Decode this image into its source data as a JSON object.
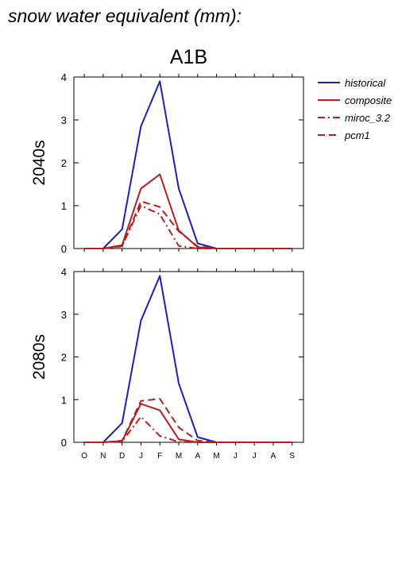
{
  "page_title": "snow water equivalent (mm):",
  "colors": {
    "historical": "#1f1fb4",
    "scenario": "#b41f1f"
  },
  "legend": [
    {
      "name": "historical",
      "color": "#1f1fb4",
      "dash": "solid"
    },
    {
      "name": "composite",
      "color": "#b41f1f",
      "dash": "solid"
    },
    {
      "name": "miroc_3.2",
      "color": "#b41f1f",
      "dash": "dashdot"
    },
    {
      "name": "pcm1",
      "color": "#b41f1f",
      "dash": "dash"
    }
  ],
  "chart_data": [
    {
      "type": "line",
      "title": "A1B",
      "ylabel": "2040s",
      "categories": [
        "O",
        "N",
        "D",
        "J",
        "F",
        "M",
        "A",
        "M",
        "J",
        "J",
        "A",
        "S"
      ],
      "ylim": [
        0,
        4
      ],
      "yticks": [
        0,
        1,
        2,
        3,
        4
      ],
      "series": [
        {
          "name": "historical",
          "values": [
            0,
            0,
            0.45,
            2.85,
            3.9,
            1.4,
            0.12,
            0,
            0,
            0,
            0,
            0
          ]
        },
        {
          "name": "composite",
          "values": [
            0,
            0,
            0.08,
            1.4,
            1.73,
            0.42,
            0.03,
            0,
            0,
            0,
            0,
            0
          ]
        },
        {
          "name": "miroc_3.2",
          "values": [
            0,
            0,
            0.06,
            1.0,
            0.8,
            0.06,
            0,
            0,
            0,
            0,
            0,
            0
          ]
        },
        {
          "name": "pcm1",
          "values": [
            0,
            0,
            0.05,
            1.1,
            0.97,
            0.4,
            0.05,
            0,
            0,
            0,
            0,
            0
          ]
        }
      ]
    },
    {
      "type": "line",
      "title": "",
      "ylabel": "2080s",
      "categories": [
        "O",
        "N",
        "D",
        "J",
        "F",
        "M",
        "A",
        "M",
        "J",
        "J",
        "A",
        "S"
      ],
      "ylim": [
        0,
        4
      ],
      "yticks": [
        0,
        1,
        2,
        3,
        4
      ],
      "series": [
        {
          "name": "historical",
          "values": [
            0,
            0,
            0.45,
            2.85,
            3.9,
            1.38,
            0.12,
            0,
            0,
            0,
            0,
            0
          ]
        },
        {
          "name": "composite",
          "values": [
            0,
            0,
            0.03,
            0.9,
            0.75,
            0.07,
            0,
            0,
            0,
            0,
            0,
            0
          ]
        },
        {
          "name": "miroc_3.2",
          "values": [
            0,
            0,
            0.02,
            0.6,
            0.15,
            0.01,
            0,
            0,
            0,
            0,
            0,
            0
          ]
        },
        {
          "name": "pcm1",
          "values": [
            0,
            0,
            0.04,
            0.97,
            1.02,
            0.35,
            0.04,
            0,
            0,
            0,
            0,
            0
          ]
        }
      ]
    }
  ]
}
